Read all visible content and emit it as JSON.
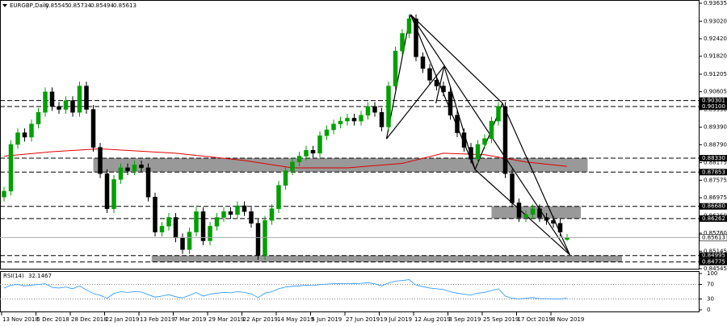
{
  "chart_data": {
    "type": "candlestick",
    "symbol": "EURGBP,Daily",
    "categories": [
      "13 Nov 2018",
      null,
      null,
      null,
      null,
      "5 Dec 2018",
      null,
      null,
      null,
      null,
      "28 Dec 2018",
      null,
      null,
      null,
      null,
      "22 Jan 2019",
      null,
      null,
      null,
      null,
      "13 Feb 2019",
      null,
      null,
      null,
      null,
      "7 Mar 2019",
      null,
      null,
      null,
      null,
      "29 Mar 2019",
      null,
      null,
      null,
      null,
      "22 Apr 2019",
      null,
      null,
      null,
      null,
      "14 May 2019",
      null,
      null,
      null,
      null,
      "5 Jun 2019",
      null,
      null,
      null,
      null,
      "27 Jun 2019",
      null,
      null,
      null,
      null,
      "19 Jul 2019",
      null,
      null,
      null,
      null,
      "12 Aug 2019",
      null,
      null,
      null,
      null,
      "3 Sep 2019",
      null,
      null,
      null,
      null,
      "25 Sep 2019",
      null,
      null,
      null,
      null,
      "17 Oct 2019",
      null,
      null,
      null,
      null,
      "8 Nov 2019",
      null,
      null
    ],
    "open": [
      0.87,
      0.872,
      0.888,
      0.892,
      0.8905,
      0.895,
      0.899,
      0.906,
      0.901,
      0.9,
      0.903,
      0.899,
      0.908,
      0.9,
      0.887,
      0.878,
      0.866,
      0.876,
      0.88,
      0.879,
      0.881,
      0.88,
      0.87,
      0.858,
      0.86,
      0.863,
      0.856,
      0.852,
      0.858,
      0.865,
      0.855,
      0.86,
      0.863,
      0.865,
      0.864,
      0.867,
      0.865,
      0.861,
      0.85,
      0.862,
      0.866,
      0.874,
      0.879,
      0.882,
      0.884,
      0.886,
      0.885,
      0.891,
      0.893,
      0.895,
      0.896,
      0.897,
      0.896,
      0.898,
      0.901,
      0.899,
      0.894,
      0.908,
      0.92,
      0.926,
      0.931,
      0.918,
      0.914,
      0.91,
      0.908,
      0.906,
      0.898,
      0.892,
      0.887,
      0.883,
      0.888,
      0.89,
      0.896,
      0.901,
      0.878,
      0.868,
      0.863,
      0.864,
      0.866,
      0.863,
      0.862,
      0.861,
      0.85545
    ],
    "high": [
      0.8735,
      0.8895,
      0.8935,
      0.8935,
      0.8965,
      0.9005,
      0.9075,
      0.9075,
      0.9025,
      0.9045,
      0.9045,
      0.9095,
      0.9095,
      0.9015,
      0.8885,
      0.8795,
      0.8775,
      0.8815,
      0.8815,
      0.8825,
      0.8825,
      0.8815,
      0.8715,
      0.8615,
      0.8645,
      0.8645,
      0.8575,
      0.8595,
      0.8665,
      0.8665,
      0.8615,
      0.8645,
      0.8665,
      0.8665,
      0.8685,
      0.8685,
      0.8665,
      0.8625,
      0.8635,
      0.8675,
      0.8755,
      0.8805,
      0.8835,
      0.8855,
      0.8875,
      0.8875,
      0.8925,
      0.8945,
      0.8965,
      0.8975,
      0.8985,
      0.8985,
      0.8995,
      0.9025,
      0.9025,
      0.9005,
      0.9095,
      0.9215,
      0.9275,
      0.9325,
      0.9325,
      0.9195,
      0.9155,
      0.9115,
      0.9095,
      0.9075,
      0.8995,
      0.8935,
      0.8885,
      0.8895,
      0.8915,
      0.8975,
      0.9025,
      0.9025,
      0.8795,
      0.8695,
      0.8655,
      0.8675,
      0.8675,
      0.8645,
      0.8635,
      0.8625,
      0.85734
    ],
    "low": [
      0.8685,
      0.8705,
      0.8865,
      0.889,
      0.889,
      0.8935,
      0.8975,
      0.8995,
      0.8985,
      0.8985,
      0.8975,
      0.8975,
      0.8985,
      0.8855,
      0.8765,
      0.8645,
      0.8645,
      0.8745,
      0.8775,
      0.8775,
      0.8785,
      0.8685,
      0.8565,
      0.8565,
      0.8585,
      0.8545,
      0.8505,
      0.8505,
      0.8565,
      0.8535,
      0.8535,
      0.8585,
      0.8615,
      0.8625,
      0.8625,
      0.8635,
      0.8595,
      0.8485,
      0.8485,
      0.8605,
      0.8645,
      0.8725,
      0.8775,
      0.8805,
      0.8825,
      0.8835,
      0.8835,
      0.8895,
      0.8915,
      0.8935,
      0.8945,
      0.8945,
      0.8945,
      0.8965,
      0.8975,
      0.8925,
      0.8925,
      0.9065,
      0.9185,
      0.9245,
      0.9165,
      0.9125,
      0.9085,
      0.9065,
      0.9045,
      0.8965,
      0.8905,
      0.8855,
      0.8815,
      0.8815,
      0.8865,
      0.8885,
      0.8945,
      0.8765,
      0.8665,
      0.8615,
      0.8615,
      0.8625,
      0.8615,
      0.8605,
      0.8595,
      0.8565,
      0.85494
    ],
    "close": [
      0.872,
      0.888,
      0.892,
      0.8905,
      0.895,
      0.899,
      0.906,
      0.901,
      0.9,
      0.903,
      0.899,
      0.908,
      0.9,
      0.887,
      0.878,
      0.866,
      0.876,
      0.88,
      0.879,
      0.881,
      0.88,
      0.87,
      0.858,
      0.86,
      0.863,
      0.856,
      0.852,
      0.858,
      0.865,
      0.855,
      0.86,
      0.863,
      0.865,
      0.864,
      0.867,
      0.865,
      0.861,
      0.85,
      0.862,
      0.866,
      0.874,
      0.879,
      0.882,
      0.884,
      0.886,
      0.885,
      0.891,
      0.893,
      0.895,
      0.896,
      0.897,
      0.896,
      0.898,
      0.901,
      0.899,
      0.894,
      0.908,
      0.92,
      0.926,
      0.931,
      0.918,
      0.914,
      0.91,
      0.908,
      0.906,
      0.898,
      0.892,
      0.887,
      0.883,
      0.888,
      0.89,
      0.896,
      0.901,
      0.878,
      0.868,
      0.863,
      0.864,
      0.866,
      0.863,
      0.862,
      0.861,
      0.858,
      0.85613
    ],
    "up_color": "#00a000",
    "down_color": "#000000",
    "ylim": [
      0.84545,
      0.93635
    ],
    "yticks": [
      0.93635,
      {
        "value": 0.9302,
        "label": "0.93020"
      },
      {
        "value": 0.9242,
        "label": "0.92420"
      },
      {
        "value": 0.9182,
        "label": "0.91820"
      },
      0.91205,
      0.90605,
      {
        "value": 0.8999,
        "label": "0.89990"
      },
      {
        "value": 0.8939,
        "label": "0.89390"
      },
      {
        "value": 0.8879,
        "label": "0.88790"
      },
      0.88175,
      0.87575,
      0.86975,
      {
        "value": 0.8636,
        "label": "0.86360"
      },
      {
        "value": 0.8576,
        "label": "0.85760"
      },
      0.85145,
      0.84545
    ],
    "levels": [
      0.90301,
      {
        "value": 0.901,
        "label": "0.90100"
      },
      {
        "value": 0.8833,
        "label": "0.88330"
      },
      0.87853,
      {
        "value": 0.8668,
        "label": "0.86680"
      },
      0.86262,
      0.84995,
      0.84775
    ],
    "zones": [
      {
        "x": [
          13,
          85
        ],
        "range": [
          0.8833,
          0.87853
        ]
      },
      {
        "x": [
          71,
          84
        ],
        "range": [
          0.8668,
          0.86262
        ]
      },
      {
        "x": [
          21.5,
          90
        ],
        "range": [
          0.84995,
          0.84775
        ]
      }
    ],
    "trendlines": [
      [
        59.2,
        0.9325,
        82.4,
        0.8502
      ],
      [
        59.2,
        0.9325,
        72.6,
        0.9021
      ],
      [
        72.6,
        0.9021,
        82.4,
        0.8502
      ],
      [
        55.7,
        0.8899,
        59.2,
        0.9325
      ],
      [
        55.7,
        0.8899,
        64.1,
        0.9148
      ],
      [
        62.9,
        0.9021,
        64.1,
        0.9148
      ],
      [
        64.1,
        0.9148,
        68.6,
        0.8794
      ],
      [
        68.6,
        0.8794,
        72.6,
        0.9021
      ],
      [
        59.2,
        0.9325,
        68.6,
        0.8794
      ],
      [
        68.6,
        0.8794,
        82.4,
        0.8502
      ]
    ],
    "ma": {
      "color": "#e00000",
      "x": [
        0,
        7,
        14,
        25,
        35,
        42,
        50,
        58,
        64,
        70,
        76,
        82
      ],
      "values": [
        0.884,
        0.8855,
        0.8865,
        0.885,
        0.8825,
        0.88,
        0.88,
        0.8815,
        0.885,
        0.8845,
        0.882,
        0.8805
      ]
    },
    "rsi": {
      "label": "RSI(14)",
      "color": "#1e90ff",
      "ylim": [
        0,
        100
      ],
      "yticks": [
        100,
        70,
        30,
        0
      ],
      "levels": [
        70,
        30
      ],
      "values": [
        60,
        68,
        70,
        66,
        68,
        70,
        72,
        62,
        60,
        63,
        58,
        66,
        55,
        45,
        40,
        32,
        45,
        50,
        48,
        50,
        49,
        42,
        35,
        38,
        42,
        36,
        33,
        40,
        48,
        38,
        43,
        46,
        48,
        47,
        50,
        48,
        44,
        34,
        46,
        50,
        58,
        63,
        65,
        66,
        68,
        67,
        70,
        71,
        72,
        72,
        73,
        72,
        73,
        75,
        72,
        66,
        74,
        79,
        81,
        83,
        68,
        64,
        60,
        58,
        56,
        50,
        46,
        43,
        41,
        46,
        48,
        53,
        58,
        38,
        32,
        30,
        32,
        34,
        31,
        31,
        30,
        30,
        32.1467
      ]
    }
  }
}
